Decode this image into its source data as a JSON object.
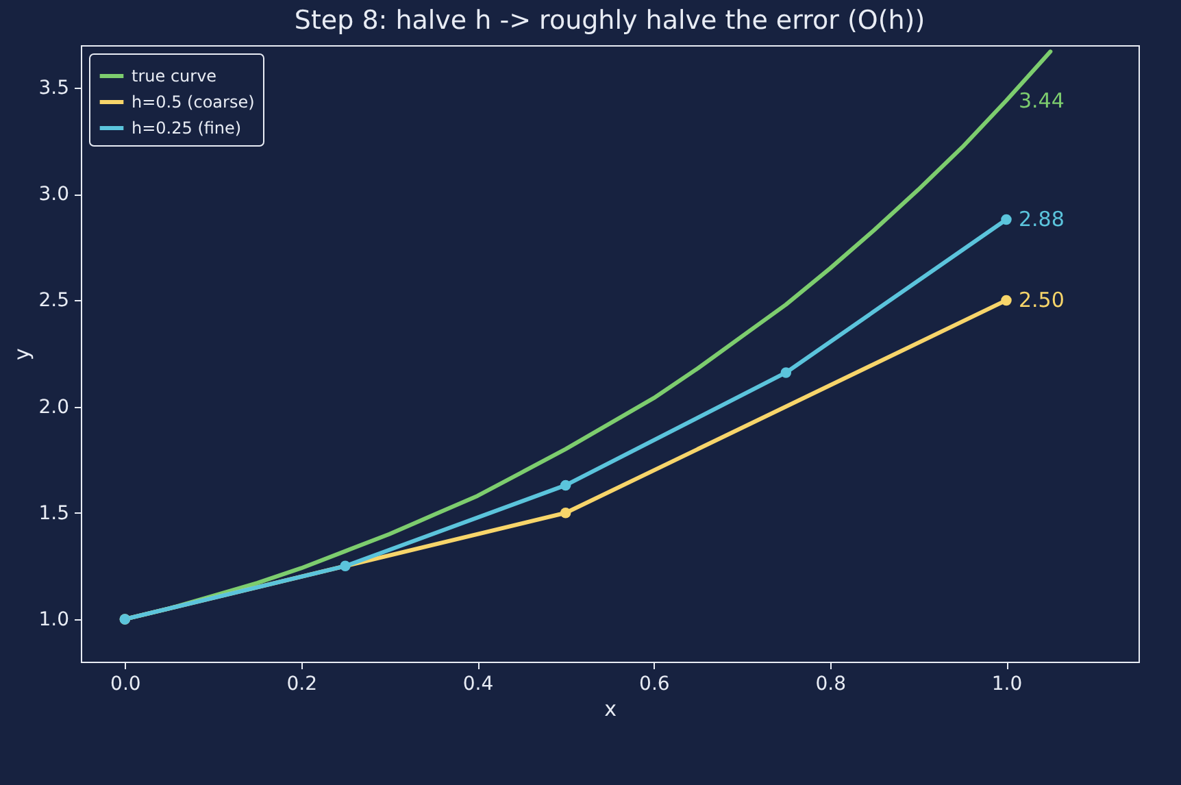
{
  "chart_data": {
    "type": "line",
    "title": "Step 8: halve h -> roughly halve the error (O(h))",
    "xlabel": "x",
    "ylabel": "y",
    "xlim": [
      -0.05,
      1.15
    ],
    "xticks": [
      {
        "value": 0,
        "label": "0.0"
      },
      {
        "value": 0.2,
        "label": "0.2"
      },
      {
        "value": 0.4,
        "label": "0.4"
      },
      {
        "value": 0.6,
        "label": "0.6"
      },
      {
        "value": 0.8,
        "label": "0.8"
      },
      {
        "value": 1,
        "label": "1.0"
      }
    ],
    "ylim": [
      0.8,
      3.7
    ],
    "yticks": [
      {
        "value": 1,
        "label": "1.0"
      },
      {
        "value": 1.5,
        "label": "1.5"
      },
      {
        "value": 2,
        "label": "2.0"
      },
      {
        "value": 2.5,
        "label": "2.5"
      },
      {
        "value": 3,
        "label": "3.0"
      },
      {
        "value": 3.5,
        "label": "3.5"
      }
    ],
    "grid": false,
    "legend": "top left",
    "marker": "circle",
    "series": [
      {
        "name": "true curve",
        "color": "#7dcd6e",
        "marker": "none",
        "x": [
          0,
          0.05,
          0.1,
          0.15,
          0.2,
          0.25,
          0.3,
          0.35,
          0.4,
          0.45,
          0.5,
          0.55,
          0.6,
          0.65,
          0.7,
          0.75,
          0.8,
          0.85,
          0.9,
          0.95,
          1,
          1.05
        ],
        "values": [
          1,
          1.05,
          1.11,
          1.17,
          1.24,
          1.32,
          1.4,
          1.49,
          1.58,
          1.69,
          1.8,
          1.92,
          2.04,
          2.18,
          2.33,
          2.48,
          2.65,
          2.83,
          3.02,
          3.22,
          3.44,
          3.67
        ],
        "value_labels": [
          null,
          null,
          null,
          null,
          null,
          null,
          null,
          null,
          null,
          null,
          null,
          null,
          null,
          null,
          null,
          null,
          null,
          null,
          null,
          null,
          "3.44",
          null
        ]
      },
      {
        "name": "h=0.5 (coarse)",
        "color": "#f7d56a",
        "x": [
          0,
          0.5,
          1
        ],
        "values": [
          1,
          1.5,
          2.5
        ],
        "value_labels": [
          null,
          null,
          "2.50"
        ]
      },
      {
        "name": "h=0.25 (fine)",
        "color": "#5bc4dc",
        "x": [
          0,
          0.25,
          0.5,
          0.75,
          1
        ],
        "values": [
          1,
          1.25,
          1.63,
          2.16,
          2.88
        ],
        "value_labels": [
          null,
          null,
          null,
          null,
          "2.88"
        ]
      }
    ]
  }
}
